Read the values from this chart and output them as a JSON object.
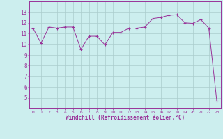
{
  "x": [
    0,
    1,
    2,
    3,
    4,
    5,
    6,
    7,
    8,
    9,
    10,
    11,
    12,
    13,
    14,
    15,
    16,
    17,
    18,
    19,
    20,
    21,
    22,
    23
  ],
  "y": [
    11.5,
    10.1,
    11.6,
    11.5,
    11.6,
    11.6,
    9.5,
    10.75,
    10.75,
    9.95,
    11.1,
    11.1,
    11.5,
    11.5,
    11.6,
    12.4,
    12.5,
    12.7,
    12.75,
    12.0,
    11.95,
    12.3,
    11.5,
    4.7
  ],
  "line_color": "#993399",
  "marker": "+",
  "marker_color": "#993399",
  "bg_color": "#cceeee",
  "grid_color": "#aacccc",
  "tick_color": "#993399",
  "xlabel": "Windchill (Refroidissement éolien,°C)",
  "xlabel_color": "#993399",
  "ylim": [
    4,
    14
  ],
  "xlim": [
    -0.5,
    23.5
  ],
  "yticks": [
    5,
    6,
    7,
    8,
    9,
    10,
    11,
    12,
    13
  ],
  "xticks": [
    0,
    1,
    2,
    3,
    4,
    5,
    6,
    7,
    8,
    9,
    10,
    11,
    12,
    13,
    14,
    15,
    16,
    17,
    18,
    19,
    20,
    21,
    22,
    23
  ],
  "spine_color": "#993399"
}
